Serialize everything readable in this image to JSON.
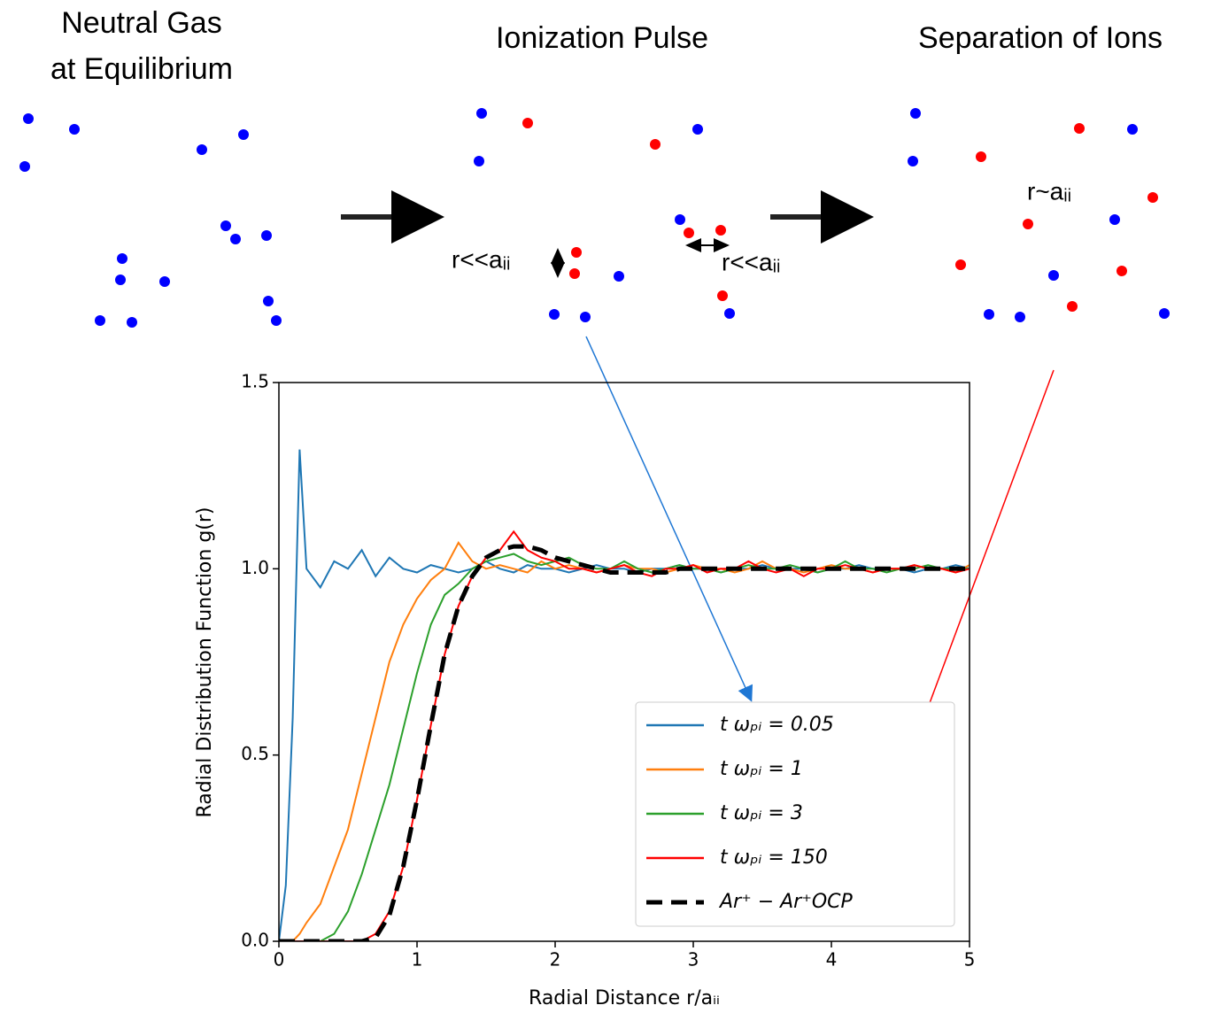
{
  "diagram": {
    "panels": [
      {
        "title_lines": [
          "Neutral Gas",
          "at Equilibrium"
        ]
      },
      {
        "title_lines": [
          "Ionization Pulse"
        ],
        "labels": [
          "r<<aᵢᵢ",
          "r<<aᵢᵢ"
        ]
      },
      {
        "title_lines": [
          "Separation of Ions"
        ],
        "labels": [
          "r~aᵢᵢ"
        ]
      }
    ]
  },
  "chart_data": {
    "type": "line",
    "xlabel": "Radial Distance r/aᵢᵢ",
    "ylabel": "Radial Distribution Function g(r)",
    "xlim": [
      0,
      5
    ],
    "ylim": [
      0,
      1.5
    ],
    "xticks": [
      0,
      1,
      2,
      3,
      4,
      5
    ],
    "yticks": [
      {
        "value": 0,
        "label": "0.0"
      },
      {
        "value": 0.5,
        "label": "0.5"
      },
      {
        "value": 1,
        "label": "1.0"
      },
      {
        "value": 1.5,
        "label": "1.5"
      }
    ],
    "legend": "lower right",
    "x": [
      0,
      0.05,
      0.1,
      0.15,
      0.2,
      0.3,
      0.4,
      0.5,
      0.6,
      0.7,
      0.8,
      0.9,
      1.0,
      1.1,
      1.2,
      1.3,
      1.4,
      1.5,
      1.6,
      1.7,
      1.8,
      1.9,
      2.0,
      2.1,
      2.2,
      2.3,
      2.4,
      2.5,
      2.6,
      2.7,
      2.8,
      2.9,
      3.0,
      3.1,
      3.2,
      3.3,
      3.4,
      3.5,
      3.6,
      3.7,
      3.8,
      3.9,
      4.0,
      4.1,
      4.2,
      4.3,
      4.4,
      4.5,
      4.6,
      4.7,
      4.8,
      4.9,
      5.0
    ],
    "series": [
      {
        "name": "t ωₚᵢ = 0.05",
        "color": "#1f77b4",
        "linestyle": "solid",
        "values": [
          0,
          0.15,
          0.6,
          1.32,
          1.0,
          0.95,
          1.02,
          1.0,
          1.05,
          0.98,
          1.03,
          1.0,
          0.99,
          1.01,
          1.0,
          0.99,
          1.0,
          1.02,
          1.0,
          0.99,
          1.01,
          1.0,
          1.0,
          0.99,
          1.0,
          1.01,
          1.0,
          1.0,
          0.99,
          1.0,
          1.0,
          1.01,
          1.0,
          1.0,
          0.99,
          1.0,
          1.0,
          1.01,
          1.0,
          1.0,
          1.0,
          0.99,
          1.0,
          1.0,
          1.01,
          1.0,
          1.0,
          1.0,
          0.99,
          1.0,
          1.0,
          1.01,
          1.0
        ]
      },
      {
        "name": "t ωₚᵢ = 1",
        "color": "#ff7f0e",
        "linestyle": "solid",
        "values": [
          0,
          0,
          0,
          0.02,
          0.05,
          0.1,
          0.2,
          0.3,
          0.45,
          0.6,
          0.75,
          0.85,
          0.92,
          0.97,
          1.0,
          1.07,
          1.02,
          1.0,
          1.01,
          1.0,
          0.99,
          1.02,
          1.0,
          1.01,
          1.0,
          0.99,
          1.0,
          1.01,
          1.0,
          1.0,
          0.99,
          1.0,
          1.01,
          1.0,
          1.0,
          0.99,
          1.0,
          1.02,
          1.0,
          1.0,
          0.99,
          1.0,
          1.01,
          1.0,
          1.0,
          0.99,
          1.0,
          1.0,
          1.01,
          1.0,
          1.0,
          0.99,
          1.01
        ]
      },
      {
        "name": "t ωₚᵢ = 3",
        "color": "#2ca02c",
        "linestyle": "solid",
        "values": [
          0,
          0,
          0,
          0,
          0,
          0,
          0.02,
          0.08,
          0.18,
          0.3,
          0.42,
          0.57,
          0.72,
          0.85,
          0.93,
          0.96,
          1.0,
          1.02,
          1.03,
          1.04,
          1.02,
          1.01,
          1.02,
          1.03,
          1.01,
          1.0,
          1.0,
          1.02,
          1.0,
          0.99,
          1.0,
          1.01,
          1.0,
          1.0,
          0.99,
          1.0,
          1.01,
          1.0,
          1.0,
          1.01,
          1.0,
          0.99,
          1.0,
          1.02,
          1.0,
          1.0,
          0.99,
          1.0,
          1.0,
          1.01,
          1.0,
          1.0,
          1.0
        ]
      },
      {
        "name": "t ωₚᵢ = 150",
        "color": "#ff0000",
        "linestyle": "solid",
        "values": [
          0,
          0,
          0,
          0,
          0,
          0,
          0,
          0,
          0,
          0.02,
          0.08,
          0.2,
          0.38,
          0.58,
          0.77,
          0.9,
          0.98,
          1.03,
          1.05,
          1.1,
          1.05,
          1.03,
          1.02,
          1.0,
          1.0,
          0.99,
          1.0,
          1.01,
          0.99,
          0.98,
          1.0,
          1.0,
          1.01,
          0.99,
          1.0,
          1.0,
          1.02,
          1.0,
          0.99,
          1.0,
          0.98,
          1.0,
          1.0,
          1.01,
          1.0,
          0.99,
          1.0,
          1.0,
          1.01,
          1.0,
          1.0,
          0.99,
          1.0
        ]
      },
      {
        "name": "Ar⁺ −  Ar⁺OCP",
        "color": "#000000",
        "linestyle": "dashed",
        "values": [
          0,
          0,
          0,
          0,
          0,
          0,
          0,
          0,
          0,
          0.01,
          0.07,
          0.2,
          0.38,
          0.58,
          0.77,
          0.9,
          0.98,
          1.03,
          1.05,
          1.06,
          1.06,
          1.05,
          1.03,
          1.02,
          1.01,
          1.0,
          0.99,
          0.99,
          0.99,
          0.99,
          0.99,
          1.0,
          1.0,
          1.0,
          1.0,
          1.0,
          1.0,
          1.0,
          1.0,
          1.0,
          1.0,
          1.0,
          1.0,
          1.0,
          1.0,
          1.0,
          1.0,
          1.0,
          1.0,
          1.0,
          1.0,
          1.0,
          1.0
        ]
      }
    ]
  }
}
